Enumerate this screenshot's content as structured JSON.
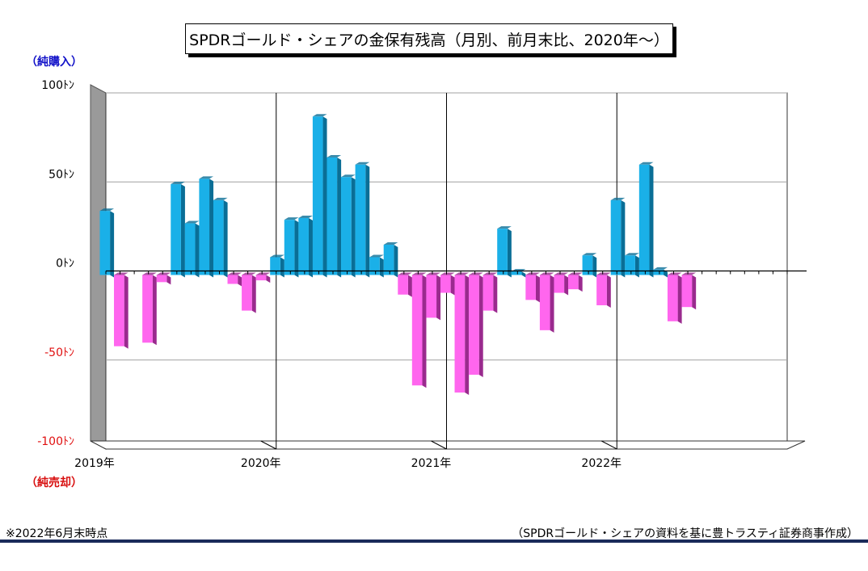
{
  "title": "SPDRゴールド・シェアの金保有残高（月別、前月末比、2020年～）",
  "side_labels": {
    "top": "（純購入）",
    "bottom": "（純売却）"
  },
  "footnote_left": "※2022年6月末時点",
  "footnote_right": "（SPDRゴールド・シェアの資料を基に豊トラスティ証券商事作成）",
  "colors": {
    "positive": "#1ab0e8",
    "positive_dark": "#0a6e96",
    "negative": "#ff66ee",
    "negative_dark": "#9a2a8e",
    "back_wall": "#9a9a9a",
    "grid": "#a0a0a0",
    "tick_positive": "#000000",
    "tick_negative": "#e01010"
  },
  "chart_data": {
    "type": "bar",
    "title": "SPDRゴールド・シェアの金保有残高（月別、前月末比、2020年～）",
    "xlabel": "",
    "ylabel": "",
    "ylim": [
      -100,
      100
    ],
    "yticks": [
      {
        "value": 100,
        "label": "100ﾄﾝ"
      },
      {
        "value": 50,
        "label": "50ﾄﾝ"
      },
      {
        "value": 0,
        "label": "0ﾄﾝ"
      },
      {
        "value": -50,
        "label": "-50ﾄﾝ"
      },
      {
        "value": -100,
        "label": "-100ﾄﾝ"
      }
    ],
    "year_labels": [
      "2019年",
      "2020年",
      "2021年",
      "2022年"
    ],
    "grid": true,
    "categories": [
      "2019-01",
      "2019-02",
      "2019-03",
      "2019-04",
      "2019-05",
      "2019-06",
      "2019-07",
      "2019-08",
      "2019-09",
      "2019-10",
      "2019-11",
      "2019-12",
      "2020-01",
      "2020-02",
      "2020-03",
      "2020-04",
      "2020-05",
      "2020-06",
      "2020-07",
      "2020-08",
      "2020-09",
      "2020-10",
      "2020-11",
      "2020-12",
      "2021-01",
      "2021-02",
      "2021-03",
      "2021-04",
      "2021-05",
      "2021-06",
      "2021-07",
      "2021-08",
      "2021-09",
      "2021-10",
      "2021-11",
      "2021-12",
      "2022-01",
      "2022-02",
      "2022-03",
      "2022-04",
      "2022-05",
      "2022-06",
      "2022-07",
      "2022-08",
      "2022-09",
      "2022-10",
      "2022-11",
      "2022-12"
    ],
    "values": [
      36,
      -40,
      0,
      -38,
      -4,
      51,
      29,
      54,
      42,
      -5,
      -20,
      -3,
      10,
      31,
      32,
      89,
      66,
      55,
      62,
      10,
      17,
      -11,
      -62,
      -24,
      -10,
      -66,
      -56,
      -20,
      26,
      2,
      -14,
      -31,
      -10,
      -8,
      11,
      -17,
      42,
      11,
      62,
      3,
      -26,
      -18,
      0,
      0,
      0,
      0,
      0,
      0
    ]
  }
}
